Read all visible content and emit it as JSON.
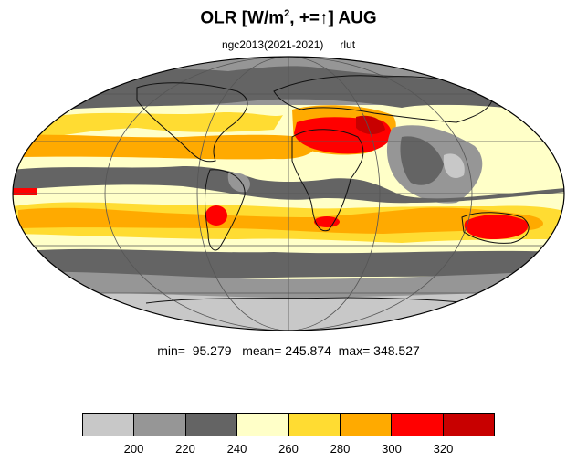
{
  "header": {
    "title_prefix": "OLR [W/m",
    "title_exp": "2",
    "title_suffix": ", +=↑] AUG",
    "model": "ngc2013(2021-2021)",
    "variable": "rlut"
  },
  "stats": {
    "text": "min=  95.279   mean= 245.874  max= 348.527"
  },
  "colorbar": {
    "colors": [
      "#c8c8c8",
      "#969696",
      "#646464",
      "#ffffc8",
      "#ffdc32",
      "#ffaa00",
      "#ff0000",
      "#c80000"
    ],
    "labels": [
      "200",
      "220",
      "240",
      "260",
      "280",
      "300",
      "320"
    ]
  },
  "map": {
    "projection": "mollweide",
    "background": "#ffffc8"
  }
}
